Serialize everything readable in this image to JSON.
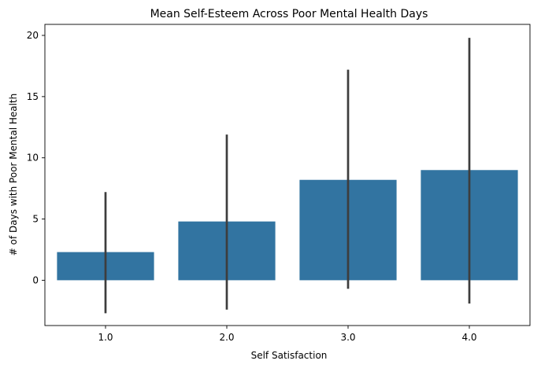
{
  "chart_data": {
    "type": "bar",
    "title": "Mean Self-Esteem Across Poor Mental Health Days",
    "xlabel": "Self Satisfaction",
    "ylabel": "# of Days with Poor Mental Health",
    "categories": [
      "1.0",
      "2.0",
      "3.0",
      "4.0"
    ],
    "values": [
      2.3,
      4.8,
      8.2,
      9.0
    ],
    "error_low": [
      -2.7,
      -2.4,
      -0.7,
      -1.9
    ],
    "error_high": [
      7.2,
      11.9,
      17.2,
      19.8
    ],
    "ylim": [
      -3.7,
      20.9
    ],
    "yticks": [
      0,
      5,
      10,
      15,
      20
    ],
    "grid": false,
    "bar_color": "#3274a1",
    "errbar_color": "#3d3d3d"
  }
}
